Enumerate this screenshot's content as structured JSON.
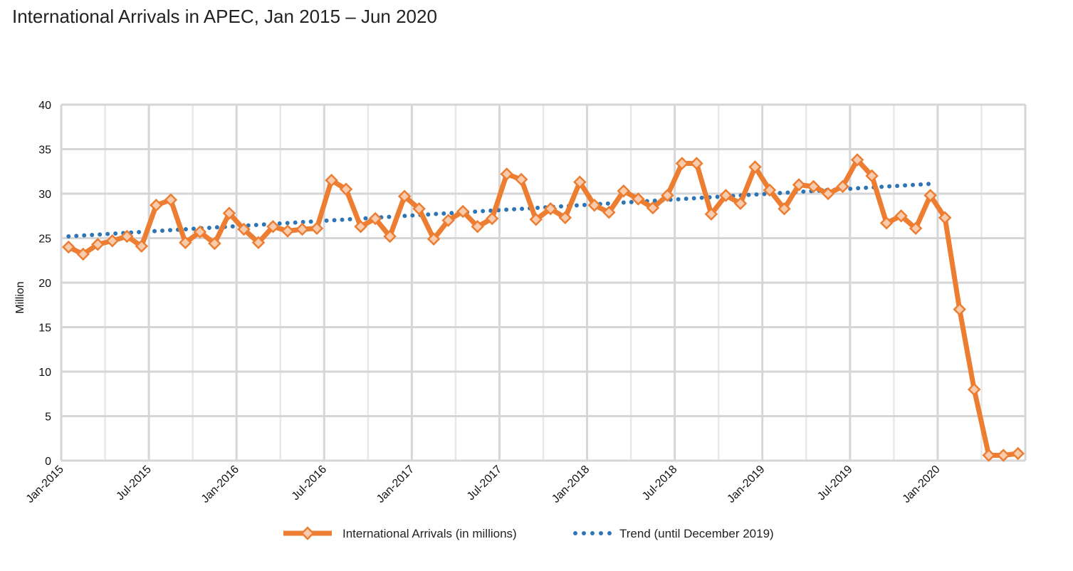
{
  "chart_data": {
    "type": "line",
    "title": "International Arrivals in APEC, Jan 2015 – Jun 2020",
    "ylabel": "Million",
    "xlabel": "",
    "ylim": [
      0,
      40
    ],
    "yticks": [
      0,
      5,
      10,
      15,
      20,
      25,
      30,
      35,
      40
    ],
    "grid": true,
    "legend_position": "bottom",
    "x_start": "Jan-2015",
    "x_end": "Jun-2020",
    "x_tick_labels": [
      "Jan-2015",
      "Jul-2015",
      "Jan-2016",
      "Jul-2016",
      "Jan-2017",
      "Jul-2017",
      "Jan-2018",
      "Jul-2018",
      "Jan-2019",
      "Jul-2019",
      "Jan-2020"
    ],
    "series": [
      {
        "name": "International Arrivals (in millions)",
        "style": "line-diamond",
        "color": "#ED7D31",
        "marker_fill": "#F8CBAD",
        "values": [
          24.0,
          23.2,
          24.3,
          24.7,
          25.2,
          24.1,
          28.7,
          29.3,
          24.5,
          25.7,
          24.4,
          27.8,
          26.0,
          24.5,
          26.3,
          25.8,
          26.0,
          26.1,
          31.5,
          30.5,
          26.3,
          27.2,
          25.2,
          29.7,
          28.3,
          24.9,
          27.0,
          28.0,
          26.3,
          27.2,
          32.2,
          31.6,
          27.1,
          28.3,
          27.3,
          31.3,
          28.7,
          27.9,
          30.3,
          29.4,
          28.4,
          29.8,
          33.4,
          33.4,
          27.7,
          29.8,
          28.9,
          33.0,
          30.4,
          28.3,
          31.0,
          30.8,
          30.0,
          30.8,
          33.8,
          32.0,
          26.7,
          27.5,
          26.1,
          29.8,
          27.3,
          17.0,
          8.0,
          0.6,
          0.6,
          0.8
        ]
      },
      {
        "name": "Trend (until December 2019)",
        "style": "dotted",
        "color": "#2E75B6",
        "values": [
          25.2,
          25.3,
          25.4,
          25.5,
          25.6,
          25.7,
          25.8,
          25.9,
          26.0,
          26.1,
          26.2,
          26.3,
          26.4,
          26.5,
          26.6,
          26.7,
          26.8,
          26.9,
          27.0,
          27.1,
          27.2,
          27.3,
          27.4,
          27.5,
          27.6,
          27.7,
          27.8,
          27.9,
          28.0,
          28.1,
          28.2,
          28.3,
          28.4,
          28.5,
          28.6,
          28.7,
          28.8,
          28.9,
          29.0,
          29.1,
          29.2,
          29.3,
          29.4,
          29.5,
          29.6,
          29.7,
          29.8,
          29.9,
          30.0,
          30.1,
          30.2,
          30.3,
          30.4,
          30.5,
          30.6,
          30.7,
          30.8,
          30.9,
          31.0,
          31.1
        ]
      }
    ]
  }
}
